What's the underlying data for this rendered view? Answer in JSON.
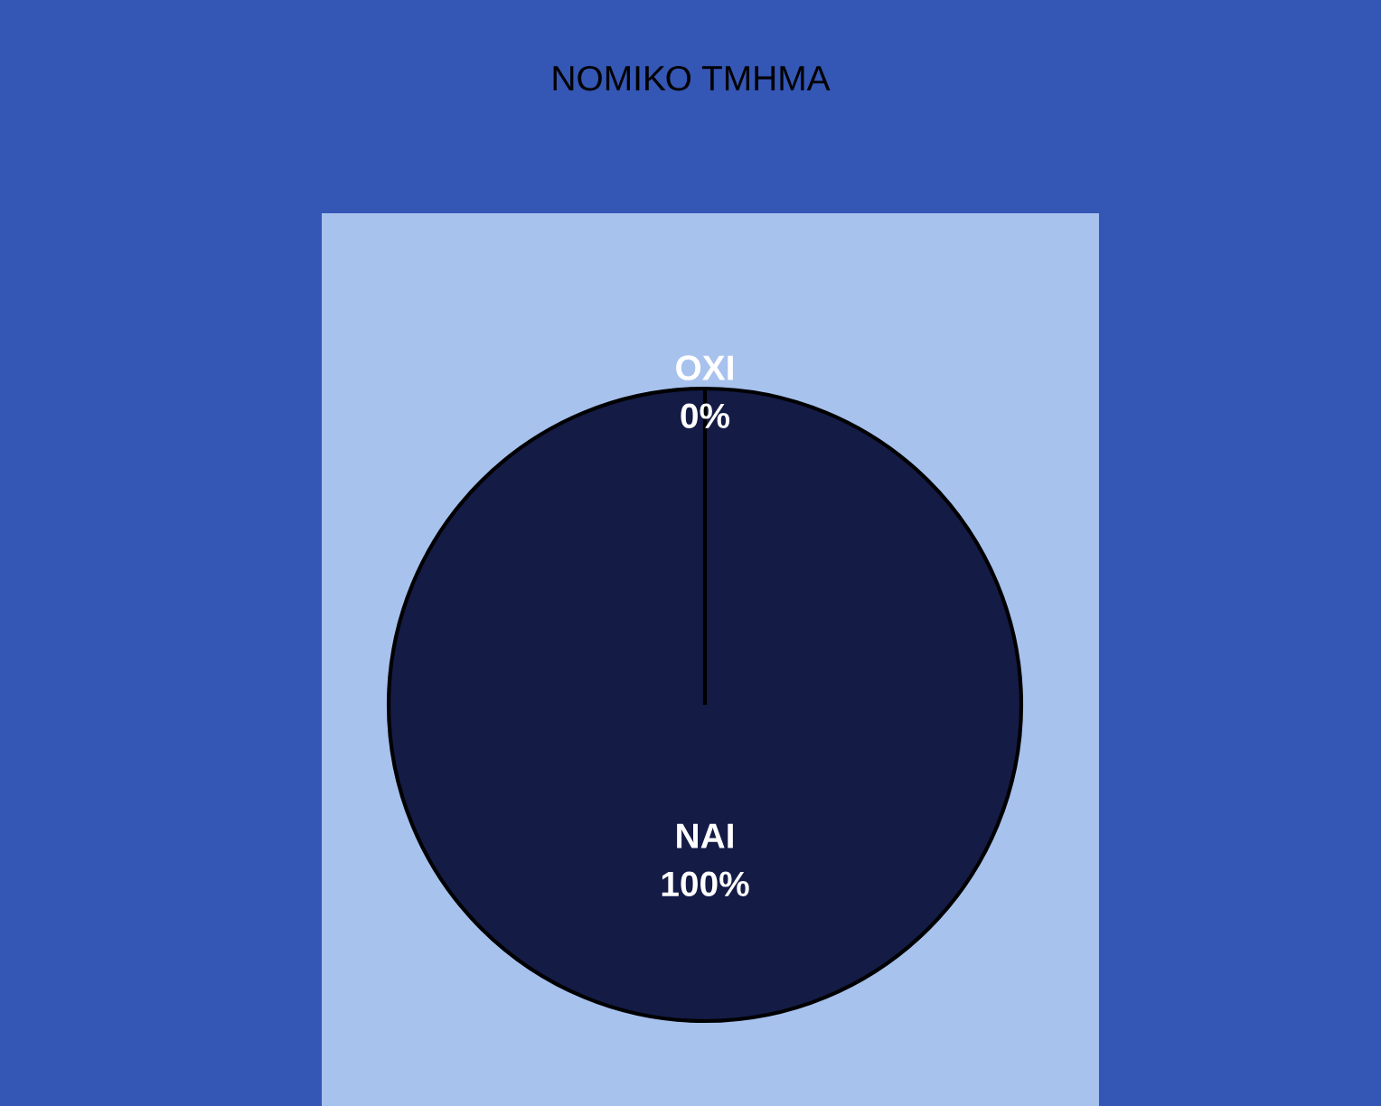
{
  "chart_data": {
    "type": "pie",
    "title": "ΝΟΜΙΚΟ ΤΜΗΜΑ",
    "categories": [
      "ΟΧΙ",
      "ΝΑΙ"
    ],
    "values": [
      0,
      100
    ],
    "value_labels": [
      "0%",
      "100%"
    ],
    "colors": [
      "#5b7fd0",
      "#141b45"
    ]
  }
}
